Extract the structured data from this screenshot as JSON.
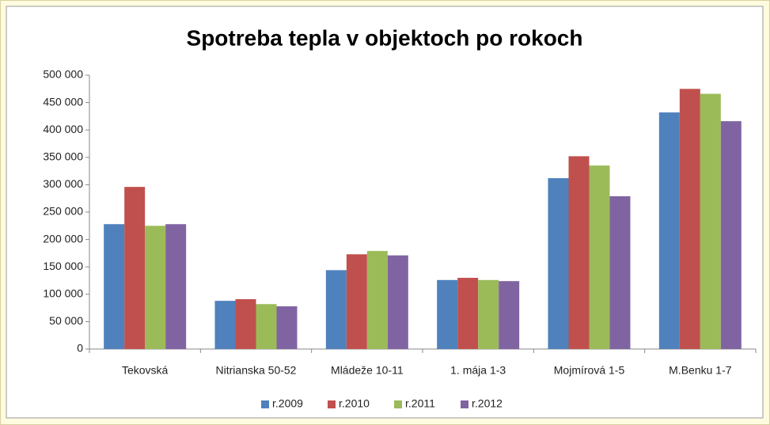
{
  "chart_data": {
    "type": "bar",
    "title": "Spotreba tepla v objektoch po rokoch",
    "categories": [
      "Tekovská",
      "Nitrianska 50-52",
      "Mládeže 10-11",
      "1. mája 1-3",
      "Mojmírová 1-5",
      "M.Benku 1-7"
    ],
    "series": [
      {
        "name": "r.2009",
        "color": "#4f81bd",
        "values": [
          228000,
          88000,
          144000,
          126000,
          312000,
          432000
        ]
      },
      {
        "name": "r.2010",
        "color": "#c0504d",
        "values": [
          296000,
          91000,
          173000,
          130000,
          352000,
          475000
        ]
      },
      {
        "name": "r.2011",
        "color": "#9bbb59",
        "values": [
          225000,
          82000,
          179000,
          126000,
          335000,
          466000
        ]
      },
      {
        "name": "r.2012",
        "color": "#8064a2",
        "values": [
          228000,
          78000,
          171000,
          124000,
          279000,
          416000
        ]
      }
    ],
    "ylim": [
      0,
      500000
    ],
    "yticks": [
      0,
      {
        "value": 50000,
        "label": "50 000"
      },
      {
        "value": 100000,
        "label": "100 000"
      },
      {
        "value": 150000,
        "label": "150 000"
      },
      {
        "value": 200000,
        "label": "200 000"
      },
      {
        "value": 250000,
        "label": "250 000"
      },
      {
        "value": 300000,
        "label": "300 000"
      },
      {
        "value": 350000,
        "label": "350 000"
      },
      {
        "value": 400000,
        "label": "400 000"
      },
      {
        "value": 450000,
        "label": "450 000"
      },
      {
        "value": 500000,
        "label": "500 000"
      }
    ],
    "grid": false,
    "legend": "bottom"
  }
}
